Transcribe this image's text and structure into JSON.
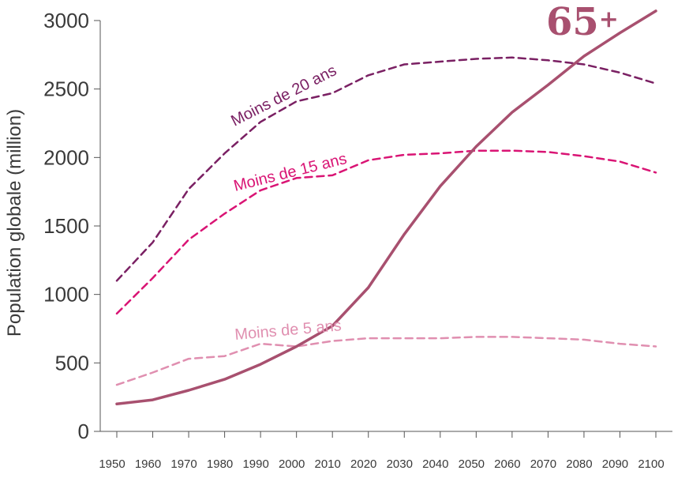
{
  "chart_data": {
    "type": "line",
    "ylabel": "Population globale (million)",
    "xlabel": "",
    "ylim": [
      0,
      3000
    ],
    "xlim": [
      1950,
      2100
    ],
    "yticks": [
      0,
      500,
      1000,
      1500,
      2000,
      2500,
      3000
    ],
    "xticks": [
      1950,
      1960,
      1970,
      1980,
      1990,
      2000,
      2010,
      2020,
      2030,
      2040,
      2050,
      2060,
      2070,
      2080,
      2090,
      2100
    ],
    "x": [
      1950,
      1960,
      1970,
      1980,
      1990,
      2000,
      2010,
      2020,
      2030,
      2040,
      2050,
      2060,
      2070,
      2080,
      2090,
      2100
    ],
    "series": [
      {
        "name": "Moins de 20 ans",
        "color": "#7a2063",
        "style": "dashed",
        "values": [
          1100,
          1380,
          1770,
          2030,
          2260,
          2410,
          2470,
          2600,
          2680,
          2700,
          2720,
          2730,
          2710,
          2680,
          2620,
          2540
        ]
      },
      {
        "name": "Moins de 15 ans",
        "color": "#d91474",
        "style": "dashed",
        "values": [
          860,
          1120,
          1400,
          1590,
          1760,
          1850,
          1870,
          1980,
          2020,
          2030,
          2050,
          2050,
          2040,
          2010,
          1970,
          1890
        ]
      },
      {
        "name": "Moins de 5 ans",
        "color": "#e08fb0",
        "style": "dashed",
        "values": [
          340,
          430,
          530,
          550,
          640,
          620,
          660,
          680,
          680,
          680,
          690,
          690,
          680,
          670,
          640,
          620
        ]
      },
      {
        "name": "65+",
        "color": "#a8506f",
        "style": "solid",
        "values": [
          200,
          230,
          300,
          380,
          490,
          620,
          770,
          1050,
          1440,
          1790,
          2080,
          2330,
          2530,
          2740,
          2910,
          3070
        ]
      }
    ],
    "labels": {
      "under20": "Moins de 20 ans",
      "under15": "Moins de 15 ans",
      "under5": "Moins de 5 ans",
      "over65_num": "65",
      "over65_plus": "+"
    },
    "grid": false,
    "legend": "inline"
  }
}
